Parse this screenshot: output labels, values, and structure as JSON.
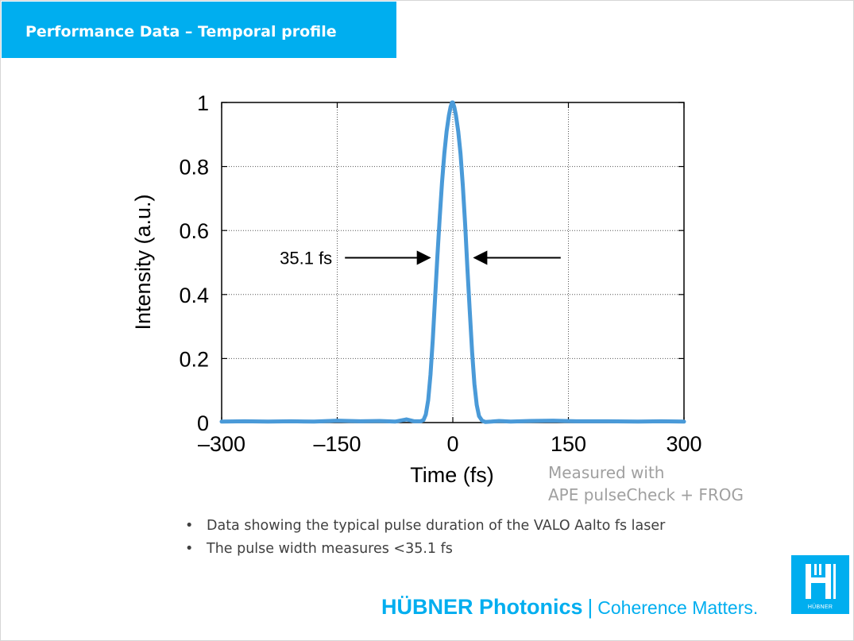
{
  "slide": {
    "title": "Performance Data – Temporal profile"
  },
  "chart_data": {
    "type": "line",
    "title": "",
    "xlabel": "Time (fs)",
    "ylabel": "Intensity (a.u.)",
    "xlim": [
      -300,
      300
    ],
    "ylim": [
      0,
      1
    ],
    "xticks": [
      -300,
      -150,
      0,
      150,
      300
    ],
    "xtick_labels": [
      "–300",
      "–150",
      "0",
      "150",
      "300"
    ],
    "yticks": [
      0,
      0.2,
      0.4,
      0.6,
      0.8,
      1
    ],
    "ytick_labels": [
      "0",
      "0.2",
      "0.4",
      "0.6",
      "0.8",
      "1"
    ],
    "grid": true,
    "legend": "none",
    "series": [
      {
        "color": "#4a9ad8",
        "x": [
          -300,
          -270,
          -240,
          -210,
          -180,
          -150,
          -120,
          -95,
          -75,
          -60,
          -50,
          -42,
          -38,
          -35,
          -32,
          -29,
          -26,
          -23,
          -20,
          -17,
          -14,
          -11,
          -8,
          -5,
          -3,
          -1,
          0,
          2,
          4,
          7,
          10,
          13,
          16,
          19,
          22,
          25,
          28,
          31,
          34,
          38,
          42,
          50,
          60,
          75,
          100,
          130,
          160,
          200,
          240,
          270,
          300
        ],
        "y": [
          0.003,
          0.004,
          0.003,
          0.004,
          0.003,
          0.006,
          0.004,
          0.005,
          0.003,
          0.01,
          0.004,
          0.004,
          0.008,
          0.025,
          0.07,
          0.15,
          0.26,
          0.39,
          0.52,
          0.64,
          0.75,
          0.84,
          0.91,
          0.96,
          0.985,
          1.0,
          1.0,
          0.985,
          0.96,
          0.91,
          0.84,
          0.74,
          0.62,
          0.48,
          0.35,
          0.22,
          0.12,
          0.055,
          0.02,
          0.006,
          0.002,
          0.003,
          0.005,
          0.003,
          0.005,
          0.006,
          0.004,
          0.004,
          0.003,
          0.004,
          0.003
        ]
      }
    ],
    "annotations": [
      {
        "text": "35.1 fs",
        "arrows": [
          {
            "x_from": -140,
            "x_to": -30,
            "y": 0.515
          },
          {
            "x_from": 140,
            "x_to": 28,
            "y": 0.515
          }
        ]
      }
    ]
  },
  "measured_note": {
    "line1": "Measured with",
    "line2": "APE pulseCheck + FROG"
  },
  "bullets": [
    "Data showing the typical pulse duration of the VALO Aalto fs laser",
    "The pulse width measures <35.1 fs"
  ],
  "footer": {
    "brand": "HÜBNER Photonics",
    "separator": "|",
    "tagline": "Coherence Matters.",
    "logo_text": "HÜBNER",
    "accent_color": "#00aeef"
  }
}
